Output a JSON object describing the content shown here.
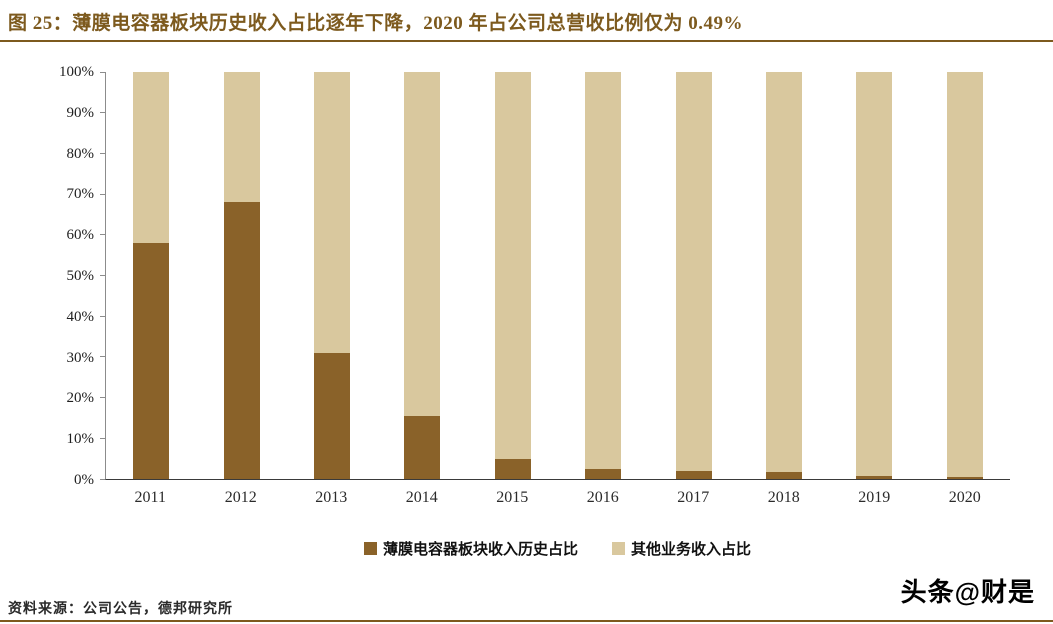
{
  "title": "图 25：薄膜电容器板块历史收入占比逐年下降，2020 年占公司总营收比例仅为 0.49%",
  "source": "资料来源：公司公告，德邦研究所",
  "watermark": "头条@财是",
  "colors": {
    "accent_rule": "#7d5a1e",
    "title_text": "#7d5a1e",
    "film_series": "#8a6229",
    "other_series": "#d9c89e"
  },
  "chart_data": {
    "type": "bar",
    "stacked": true,
    "title": "薄膜电容器板块历史收入占比逐年下降，2020 年占公司总营收比例仅为 0.49%",
    "categories": [
      "2011",
      "2012",
      "2013",
      "2014",
      "2015",
      "2016",
      "2017",
      "2018",
      "2019",
      "2020"
    ],
    "series": [
      {
        "name": "薄膜电容器板块收入历史占比",
        "color": "#8a6229",
        "values": [
          58,
          68,
          31,
          15.5,
          5,
          2.5,
          2,
          1.8,
          0.7,
          0.49
        ]
      },
      {
        "name": "其他业务收入占比",
        "color": "#d9c89e",
        "values": [
          42,
          32,
          69,
          84.5,
          95,
          97.5,
          98,
          98.2,
          99.3,
          99.51
        ]
      }
    ],
    "xlabel": "",
    "ylabel": "",
    "ylim": [
      0,
      100
    ],
    "yticks": [
      "100%",
      "90%",
      "80%",
      "70%",
      "60%",
      "50%",
      "40%",
      "30%",
      "20%",
      "10%",
      "0%"
    ],
    "grid": false,
    "legend_position": "bottom"
  }
}
